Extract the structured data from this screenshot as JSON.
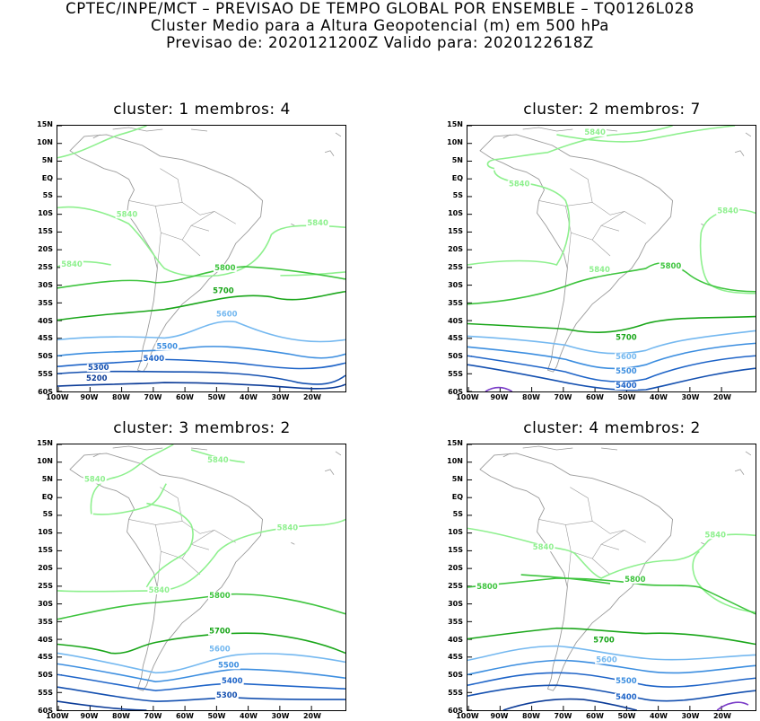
{
  "header": {
    "line1": "CPTEC/INPE/MCT – PREVISAO DE TEMPO GLOBAL POR ENSEMBLE – TQ0126L028",
    "line2": "Cluster Medio para a Altura Geopotencial (m) em 500 hPa",
    "line3": "Previsao de: 2020121200Z    Valido para: 2020122618Z"
  },
  "axes": {
    "lat_labels": [
      "15N",
      "10N",
      "5N",
      "EQ",
      "5S",
      "10S",
      "15S",
      "20S",
      "25S",
      "30S",
      "35S",
      "40S",
      "45S",
      "50S",
      "55S",
      "60S"
    ],
    "lon_labels": [
      "100W",
      "90W",
      "80W",
      "70W",
      "60W",
      "50W",
      "40W",
      "30W",
      "20W"
    ]
  },
  "colors": {
    "c5840": "#8ef08e",
    "c5800": "#3ec43e",
    "c5700": "#1aa61a",
    "c5600": "#74b8f0",
    "c5500": "#3c8ee0",
    "c5400": "#1e64c8",
    "c5300": "#1450b0",
    "c5200": "#0c3c98",
    "c5100": "#7a3cc8",
    "coast": "#9a9a9a"
  },
  "panels": [
    {
      "title": "cluster: 1   membros: 4",
      "labels": [
        "5840",
        "5840",
        "5840",
        "5800",
        "5700",
        "5600",
        "5500",
        "5400",
        "5300",
        "5200"
      ]
    },
    {
      "title": "cluster: 2   membros: 7",
      "labels": [
        "5840",
        "5840",
        "5840",
        "5840",
        "5800",
        "5700",
        "5600",
        "5500",
        "5400"
      ]
    },
    {
      "title": "cluster: 3   membros: 2",
      "labels": [
        "5840",
        "5840",
        "5840",
        "5840",
        "5800",
        "5700",
        "5600",
        "5500",
        "5400",
        "5300"
      ]
    },
    {
      "title": "cluster: 4   membros: 2",
      "labels": [
        "5840",
        "5840",
        "5800",
        "5800",
        "5700",
        "5600",
        "5500",
        "5400"
      ]
    }
  ]
}
